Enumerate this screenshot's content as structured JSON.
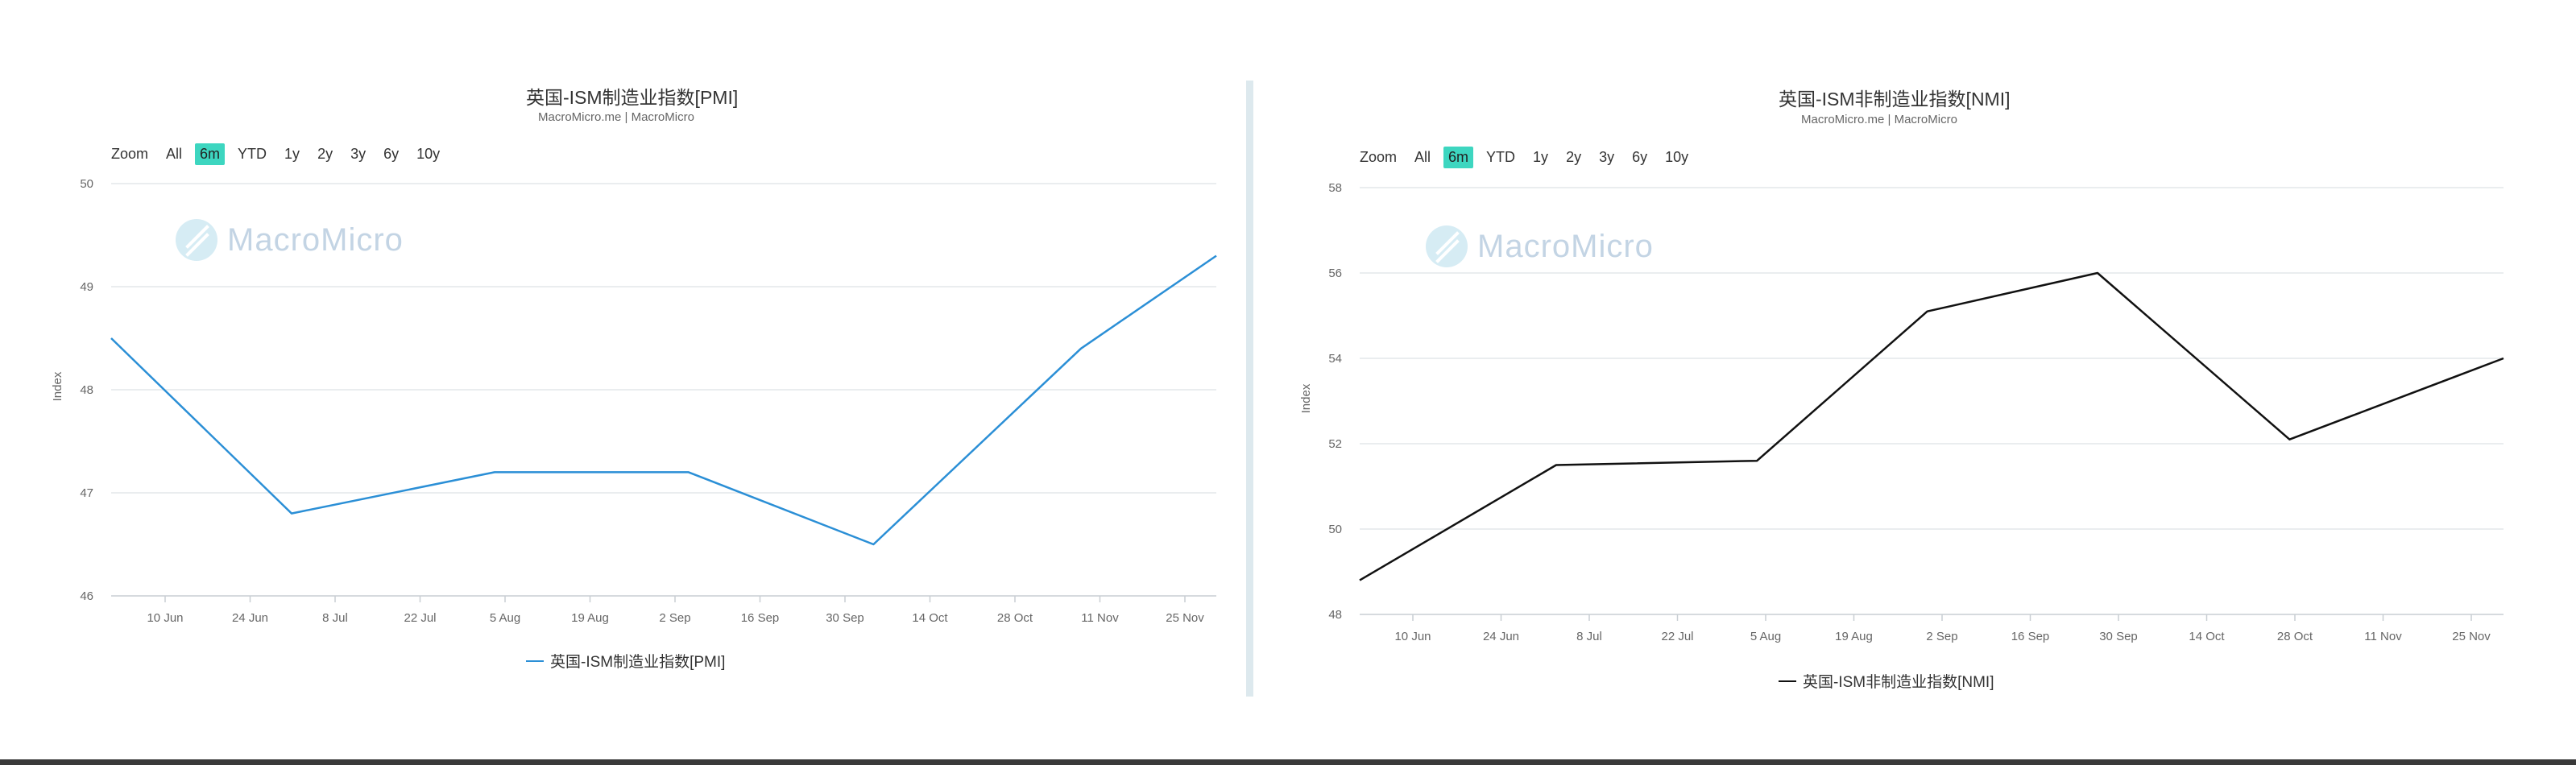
{
  "charts": [
    {
      "title": "英国-ISM制造业指数[PMI]",
      "subtitle": "MacroMicro.me | MacroMicro",
      "zoom": {
        "label": "Zoom",
        "buttons": [
          "All",
          "6m",
          "YTD",
          "1y",
          "2y",
          "3y",
          "6y",
          "10y"
        ],
        "active": "6m"
      },
      "watermark": "MacroMicro",
      "legend": "英国-ISM制造业指数[PMI]",
      "color": "#2b8fd6"
    },
    {
      "title": "英国-ISM非制造业指数[NMI]",
      "subtitle": "MacroMicro.me | MacroMicro",
      "zoom": {
        "label": "Zoom",
        "buttons": [
          "All",
          "6m",
          "YTD",
          "1y",
          "2y",
          "3y",
          "6y",
          "10y"
        ],
        "active": "6m"
      },
      "watermark": "MacroMicro",
      "legend": "英国-ISM非制造业指数[NMI]",
      "color": "#111111"
    }
  ],
  "chart_data": [
    {
      "type": "line",
      "title": "英国-ISM制造业指数[PMI]",
      "ylabel": "Index",
      "xlabel": "",
      "ylim": [
        46,
        50
      ],
      "yticks": [
        "50",
        "49",
        "48",
        "47",
        "46"
      ],
      "xlim": [
        -0.45,
        11.8
      ],
      "x_ticks": [
        "10 Jun",
        "24 Jun",
        "8 Jul",
        "22 Jul",
        "5 Aug",
        "19 Aug",
        "2 Sep",
        "16 Sep",
        "30 Sep",
        "14 Oct",
        "28 Oct",
        "11 Nov",
        "25 Nov"
      ],
      "grid": true,
      "series": [
        {
          "name": "英国-ISM制造业指数[PMI]",
          "x": [
            -0.45,
            1.55,
            3.8,
            5.95,
            8.0,
            10.3,
            11.8
          ],
          "y": [
            48.5,
            46.8,
            47.2,
            47.2,
            46.5,
            48.4,
            49.3
          ]
        }
      ]
    },
    {
      "type": "line",
      "title": "英国-ISM非制造业指数[NMI]",
      "ylabel": "Index",
      "xlabel": "",
      "ylim": [
        48,
        58
      ],
      "yticks": [
        "58",
        "56",
        "54",
        "52",
        "50",
        "48"
      ],
      "xlim": [
        -0.45,
        12.65
      ],
      "x_ticks": [
        "10 Jun",
        "24 Jun",
        "8 Jul",
        "22 Jul",
        "5 Aug",
        "19 Aug",
        "2 Sep",
        "16 Sep",
        "30 Sep",
        "14 Oct",
        "28 Oct",
        "11 Nov",
        "25 Nov"
      ],
      "grid": true,
      "series": [
        {
          "name": "英国-ISM非制造业指数[NMI]",
          "x": [
            -0.45,
            1.8,
            4.1,
            6.05,
            8.0,
            10.2,
            12.65
          ],
          "y": [
            48.8,
            51.5,
            51.6,
            55.1,
            56.0,
            52.1,
            54.0
          ]
        }
      ]
    }
  ]
}
